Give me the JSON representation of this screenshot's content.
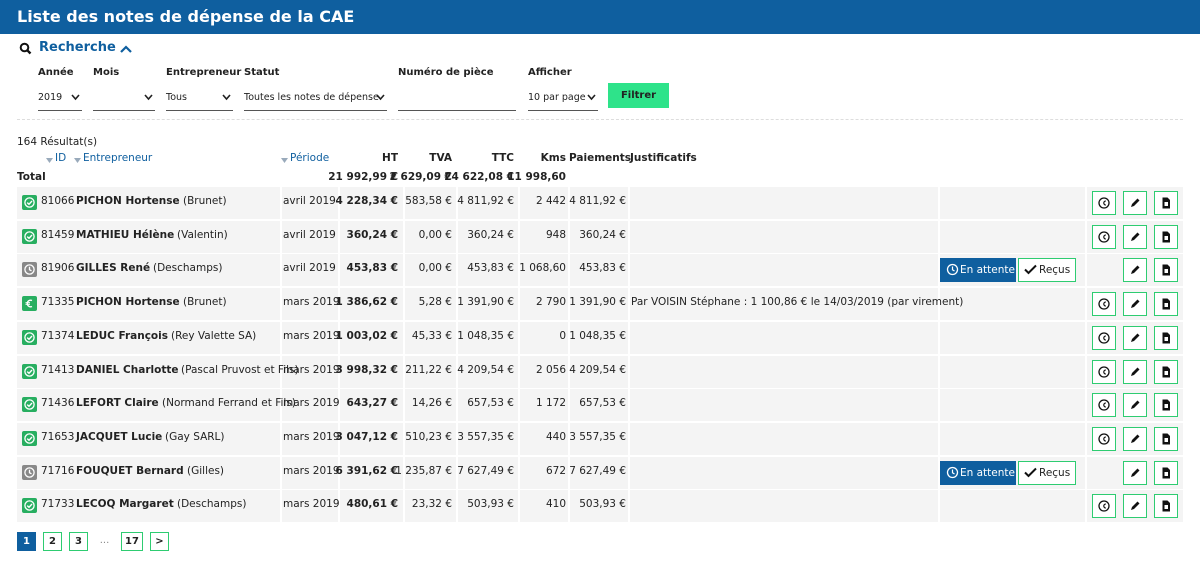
{
  "header": {
    "title": "Liste des notes de dépense de la CAE"
  },
  "search": {
    "title": "Recherche",
    "filters": [
      {
        "label": "Année",
        "value": "2019"
      },
      {
        "label": "Mois"
      },
      {
        "label": "Entrepreneur",
        "value": "Tous"
      },
      {
        "label": "Statut",
        "value": "Toutes les notes de dépense"
      },
      {
        "label": "Numéro de pièce"
      },
      {
        "label": "Afficher",
        "value": "10 par page"
      }
    ],
    "button": "Filtrer"
  },
  "results": {
    "count": "164 Résultat(s)",
    "columns": [
      "ID",
      "Entrepreneur",
      "Période",
      "HT",
      "TVA",
      "TTC",
      "Kms",
      "Paiements",
      "Justificatifs"
    ],
    "total": {
      "label": "Total",
      "ht": "21 992,99 €",
      "tva": "2 629,09 €",
      "ttc": "24 622,08 €",
      "kms": "11 998,60"
    },
    "pending_label": "En attente",
    "received_label": "Reçus",
    "rows": [
      {
        "id": "81066",
        "name": "PICHON Hortense",
        "company": "(Brunet)",
        "period": "avril 2019",
        "ht": "4 228,34 €",
        "tva": "583,58 €",
        "ttc": "4 811,92 €",
        "kms": "2 442",
        "paid": "4 811,92 €"
      },
      {
        "id": "81459",
        "name": "MATHIEU Hélène",
        "company": "(Valentin)",
        "period": "avril 2019",
        "ht": "360,24 €",
        "tva": "0,00 €",
        "ttc": "360,24 €",
        "kms": "948",
        "paid": "360,24 €"
      },
      {
        "id": "81906",
        "name": "GILLES René",
        "company": "(Deschamps)",
        "period": "avril 2019",
        "ht": "453,83 €",
        "tva": "0,00 €",
        "ttc": "453,83 €",
        "kms": "1 068,60",
        "paid": "453,83 €"
      },
      {
        "id": "71335",
        "name": "PICHON Hortense",
        "company": "(Brunet)",
        "period": "mars 2019",
        "ht": "1 386,62 €",
        "tva": "5,28 €",
        "ttc": "1 391,90 €",
        "kms": "2 790",
        "paid": "1 391,90 €",
        "note": "Par VOISIN Stéphane : 1 100,86 € le 14/03/2019 (par virement)"
      },
      {
        "id": "71374",
        "name": "LEDUC François",
        "company": "(Rey Valette SA)",
        "period": "mars 2019",
        "ht": "1 003,02 €",
        "tva": "45,33 €",
        "ttc": "1 048,35 €",
        "kms": "0",
        "paid": "1 048,35 €"
      },
      {
        "id": "71413",
        "name": "DANIEL Charlotte",
        "company": "(Pascal Pruvost et Fils)",
        "period": "mars 2019",
        "ht": "3 998,32 €",
        "tva": "211,22 €",
        "ttc": "4 209,54 €",
        "kms": "2 056",
        "paid": "4 209,54 €"
      },
      {
        "id": "71436",
        "name": "LEFORT Claire",
        "company": "(Normand Ferrand et Fils)",
        "period": "mars 2019",
        "ht": "643,27 €",
        "tva": "14,26 €",
        "ttc": "657,53 €",
        "kms": "1 172",
        "paid": "657,53 €"
      },
      {
        "id": "71653",
        "name": "JACQUET Lucie",
        "company": "(Gay SARL)",
        "period": "mars 2019",
        "ht": "3 047,12 €",
        "tva": "510,23 €",
        "ttc": "3 557,35 €",
        "kms": "440",
        "paid": "3 557,35 €"
      },
      {
        "id": "71716",
        "name": "FOUQUET Bernard",
        "company": "(Gilles)",
        "period": "mars 2019",
        "ht": "6 391,62 €",
        "tva": "1 235,87 €",
        "ttc": "7 627,49 €",
        "kms": "672",
        "paid": "7 627,49 €"
      },
      {
        "id": "71733",
        "name": "LECOQ Margaret",
        "company": "(Deschamps)",
        "period": "mars 2019",
        "ht": "480,61 €",
        "tva": "23,32 €",
        "ttc": "503,93 €",
        "kms": "410",
        "paid": "503,93 €"
      }
    ]
  },
  "pagination": [
    "1",
    "2",
    "3",
    "...",
    "17",
    ">"
  ]
}
